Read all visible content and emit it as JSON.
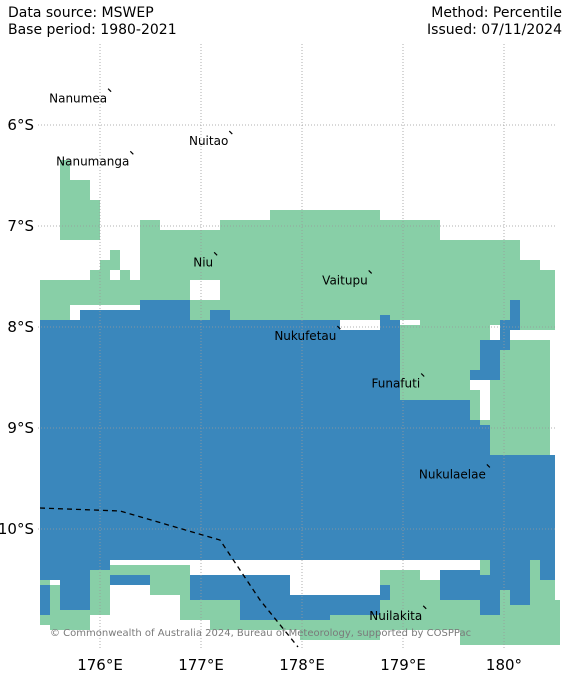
{
  "header": {
    "data_source": "Data source: MSWEP",
    "base_period": "Base period: 1980-2021",
    "method": "Method: Percentile",
    "issued": "Issued: 07/11/2024"
  },
  "axes": {
    "lon_ticks": [
      {
        "value": 176,
        "label": "176°E"
      },
      {
        "value": 177,
        "label": "177°E"
      },
      {
        "value": 178,
        "label": "178°E"
      },
      {
        "value": 179,
        "label": "179°E"
      },
      {
        "value": 180,
        "label": "180°"
      }
    ],
    "lat_ticks": [
      {
        "value": -6,
        "label": "6°S"
      },
      {
        "value": -7,
        "label": "7°S"
      },
      {
        "value": -8,
        "label": "8°S"
      },
      {
        "value": -9,
        "label": "9°S"
      },
      {
        "value": -10,
        "label": "10°S"
      }
    ],
    "lon_range": [
      175.4,
      180.5
    ],
    "lat_range": [
      -11.2,
      -5.0
    ],
    "gridlines": true
  },
  "islands": [
    {
      "name": "Nanumea",
      "lon": 176.1,
      "lat": -5.68
    },
    {
      "name": "Nuitao",
      "lon": 177.3,
      "lat": -6.1
    },
    {
      "name": "Nanumanga",
      "lon": 176.32,
      "lat": -6.3
    },
    {
      "name": "Niu",
      "lon": 177.15,
      "lat": -7.3
    },
    {
      "name": "Vaitupu",
      "lon": 178.68,
      "lat": -7.48
    },
    {
      "name": "Nukufetau",
      "lon": 178.37,
      "lat": -8.03
    },
    {
      "name": "Funafuti",
      "lon": 179.2,
      "lat": -8.5
    },
    {
      "name": "Nukulaelae",
      "lon": 179.85,
      "lat": -9.4
    },
    {
      "name": "Nuilakita",
      "lon": 179.22,
      "lat": -10.8
    }
  ],
  "colors": {
    "light_category": "#88cfa7",
    "dark_category": "#3a87bc",
    "gridline": "#999999",
    "eez_boundary": "#000000"
  },
  "copyright": "© Commonwealth of Australia 2024, Bureau of Meteorology, supported by COSPPac"
}
